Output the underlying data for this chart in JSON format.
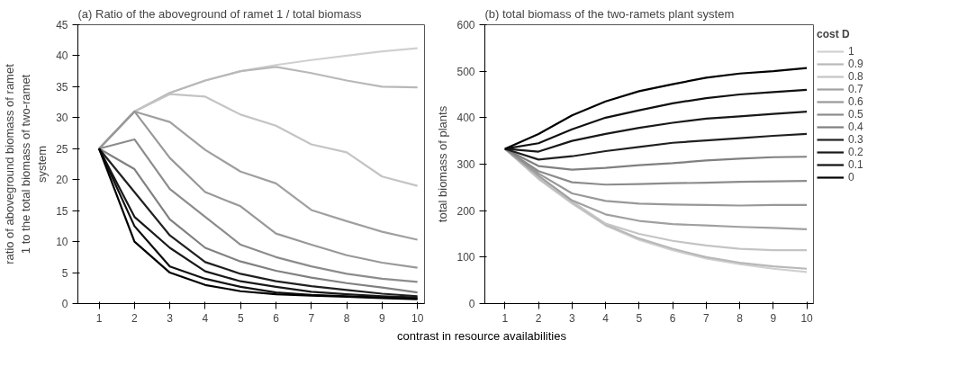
{
  "chart_data": [
    {
      "type": "line",
      "title": "(a) Ratio of the aboveground of ramet 1 / total biomass",
      "ylabel": "ratio of aboveground biomass of ramet 1 to the total biomass of two-ramet system",
      "xlabel": "contrast in resource availabilities",
      "categories": [
        "1",
        "2",
        "3",
        "4",
        "5",
        "6",
        "7",
        "8",
        "9",
        "10"
      ],
      "ylim": [
        0,
        45
      ],
      "yticks": [
        0,
        5,
        10,
        15,
        20,
        25,
        30,
        35,
        40,
        45
      ],
      "grid": false,
      "legend": false,
      "series": [
        {
          "color": "#d0d0d0",
          "values": [
            25,
            31,
            34,
            36,
            37.5,
            38.5,
            39.3,
            40,
            40.7,
            41.2
          ]
        },
        {
          "color": "#b8b8b8",
          "values": [
            25,
            31,
            34,
            36,
            37.5,
            38.2,
            37.2,
            36,
            35,
            34.9
          ]
        },
        {
          "color": "#c4c4c4",
          "values": [
            25,
            31,
            33.8,
            33.4,
            30.5,
            28.7,
            25.7,
            24.4,
            20.5,
            19
          ]
        },
        {
          "color": "#a0a0a0",
          "values": [
            25,
            31,
            29.3,
            24.8,
            21.3,
            19.4,
            15.1,
            13.3,
            11.6,
            10.3
          ]
        },
        {
          "color": "#989898",
          "values": [
            25,
            31,
            23.5,
            18,
            15.7,
            11.3,
            9.5,
            7.8,
            6.6,
            5.8
          ]
        },
        {
          "color": "#8c8c8c",
          "values": [
            25,
            26.5,
            18.5,
            14,
            9.5,
            7.5,
            6,
            4.8,
            4,
            3.5
          ]
        },
        {
          "color": "#808080",
          "values": [
            25,
            21.7,
            13.6,
            9,
            6.8,
            5.3,
            4.2,
            3.3,
            2.6,
            1.8
          ]
        },
        {
          "color": "#202020",
          "values": [
            25,
            18,
            11,
            6.7,
            4.8,
            3.6,
            2.8,
            2.2,
            1.6,
            1.2
          ]
        },
        {
          "color": "#181818",
          "values": [
            25,
            14,
            9,
            5.2,
            3.6,
            2.7,
            1.9,
            1.5,
            1.2,
            1.0
          ]
        },
        {
          "color": "#101010",
          "values": [
            25,
            12.5,
            6,
            4,
            2.7,
            1.8,
            1.4,
            1.2,
            1.0,
            0.8
          ]
        },
        {
          "color": "#000000",
          "values": [
            25,
            10,
            5,
            3,
            2,
            1.5,
            1.3,
            1.1,
            0.9,
            0.7
          ]
        }
      ]
    },
    {
      "type": "line",
      "title": "(b) total biomass of the two-ramets plant system",
      "ylabel": "total biomass of plants",
      "legend_title": "cost D",
      "categories": [
        "1",
        "2",
        "3",
        "4",
        "5",
        "6",
        "7",
        "8",
        "9",
        "10"
      ],
      "ylim": [
        0,
        600
      ],
      "yticks": [
        0,
        100,
        200,
        300,
        400,
        500,
        600
      ],
      "grid": false,
      "legend": "right",
      "series": [
        {
          "name": "1",
          "color": "#d0d0d0",
          "values": [
            333,
            268,
            215,
            168,
            137,
            115,
            97,
            85,
            75,
            68
          ]
        },
        {
          "name": "0.9",
          "color": "#b8b8b8",
          "values": [
            333,
            270,
            218,
            170,
            140,
            118,
            100,
            88,
            80,
            75
          ]
        },
        {
          "name": "0.8",
          "color": "#c4c4c4",
          "values": [
            333,
            272,
            220,
            172,
            150,
            135,
            125,
            118,
            115,
            115
          ]
        },
        {
          "name": "0.7",
          "color": "#a0a0a0",
          "values": [
            333,
            275,
            222,
            192,
            178,
            171,
            168,
            165,
            163,
            160
          ]
        },
        {
          "name": "0.6",
          "color": "#989898",
          "values": [
            333,
            280,
            237,
            221,
            215,
            213,
            212,
            211,
            212,
            212
          ]
        },
        {
          "name": "0.5",
          "color": "#8c8c8c",
          "values": [
            333,
            285,
            261,
            256,
            257,
            259,
            260,
            262,
            263,
            264
          ]
        },
        {
          "name": "0.4",
          "color": "#808080",
          "values": [
            333,
            296,
            288,
            292,
            298,
            302,
            308,
            312,
            315,
            316
          ]
        },
        {
          "name": "0.3",
          "color": "#202020",
          "values": [
            333,
            310,
            317,
            328,
            337,
            346,
            351,
            356,
            361,
            365
          ]
        },
        {
          "name": "0.2",
          "color": "#181818",
          "values": [
            333,
            327,
            350,
            365,
            378,
            389,
            398,
            403,
            408,
            413
          ]
        },
        {
          "name": "0.1",
          "color": "#101010",
          "values": [
            333,
            345,
            375,
            400,
            416,
            431,
            442,
            450,
            455,
            460
          ]
        },
        {
          "name": "0",
          "color": "#000000",
          "values": [
            333,
            365,
            405,
            435,
            457,
            472,
            486,
            495,
            500,
            507
          ]
        }
      ]
    }
  ]
}
